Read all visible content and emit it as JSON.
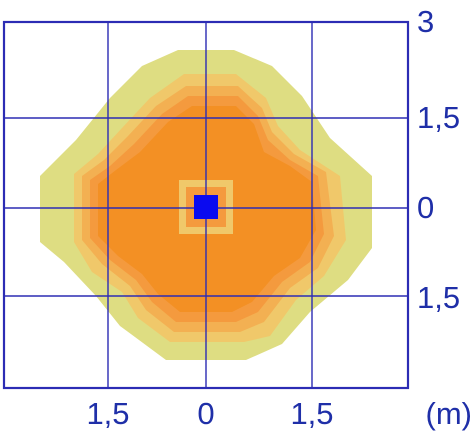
{
  "axis_labels": {
    "right": [
      "3",
      "1,5",
      "0",
      "1,5"
    ],
    "bottom": [
      "1,5",
      "0",
      "1,5"
    ],
    "unit": "(m)"
  },
  "colors": {
    "frame": "#2c2cb4",
    "grid": "#2c2cb4",
    "outer_zone": "#dedd82",
    "band_1": "#f0c86a",
    "band_2": "#f3b052",
    "band_3": "#f49a3e",
    "core_zone": "#f39024",
    "source": "#0a0af0",
    "label": "#1f2fa8"
  }
}
